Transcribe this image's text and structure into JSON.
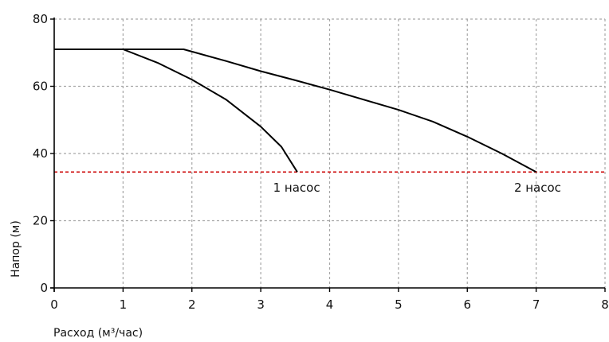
{
  "chart_data": {
    "type": "line",
    "title": "",
    "xlabel": "Расход (м³/час)",
    "ylabel": "Напор (м)",
    "xlim": [
      0,
      8
    ],
    "ylim": [
      0,
      80
    ],
    "x_ticks": [
      0,
      1,
      2,
      3,
      4,
      5,
      6,
      7,
      8
    ],
    "y_ticks": [
      0,
      20,
      40,
      60,
      80
    ],
    "grid": true,
    "legend": "none",
    "series": [
      {
        "color": "#000000",
        "points": [
          [
            0,
            71
          ],
          [
            1,
            71
          ],
          [
            1.5,
            67
          ],
          [
            2,
            62
          ],
          [
            2.5,
            56
          ],
          [
            3,
            48
          ],
          [
            3.3,
            42
          ],
          [
            3.53,
            34.5
          ]
        ]
      },
      {
        "color": "#000000",
        "points": [
          [
            0,
            71
          ],
          [
            1.88,
            71
          ],
          [
            2.5,
            67.5
          ],
          [
            3,
            64.5
          ],
          [
            3.5,
            61.8
          ],
          [
            4,
            59
          ],
          [
            5,
            53
          ],
          [
            5.5,
            49.5
          ],
          [
            6,
            45
          ],
          [
            6.5,
            40
          ],
          [
            7,
            34.5
          ]
        ]
      }
    ],
    "reference_lines": [
      {
        "y": 34.5,
        "color": "#cc0000",
        "style": "dashed"
      }
    ],
    "annotations": [
      {
        "text": "1 насос",
        "x": 3.55,
        "y": 30.5
      },
      {
        "text": "2 насос",
        "x": 7.05,
        "y": 30.5
      }
    ]
  },
  "colors": {
    "grid": "#a6a6a6",
    "axis": "#000000",
    "reference": "#cc0000"
  }
}
